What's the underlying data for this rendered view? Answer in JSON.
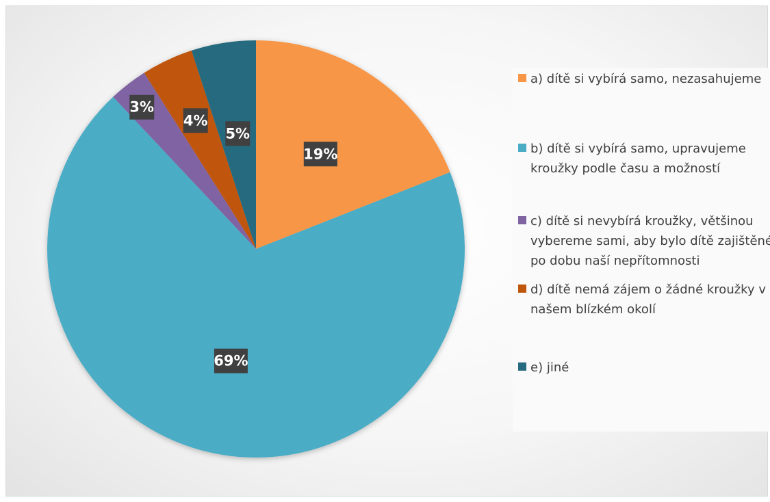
{
  "chart_data": {
    "type": "pie",
    "title": "",
    "categories": [
      "a) dítě si vybírá samo, nezasahujeme",
      "b) dítě si vybírá samo, upravujeme kroužky podle času a možností",
      "c) dítě si nevybírá kroužky, většinou vybereme sami, aby bylo dítě zajištěné po dobu naší nepřítomnosti",
      "d) dítě nemá zájem o žádné kroužky v našem blízkém okolí",
      "e) jiné"
    ],
    "values": [
      19,
      69,
      3,
      4,
      5
    ],
    "data_labels": [
      "19%",
      "69%",
      "3%",
      "4%",
      "5%"
    ],
    "colors": [
      "#f79646",
      "#4bacc6",
      "#8064a2",
      "#c0560c",
      "#266b7f"
    ],
    "start_angle": "top (12 o'clock), clockwise",
    "legend_position": "right"
  }
}
